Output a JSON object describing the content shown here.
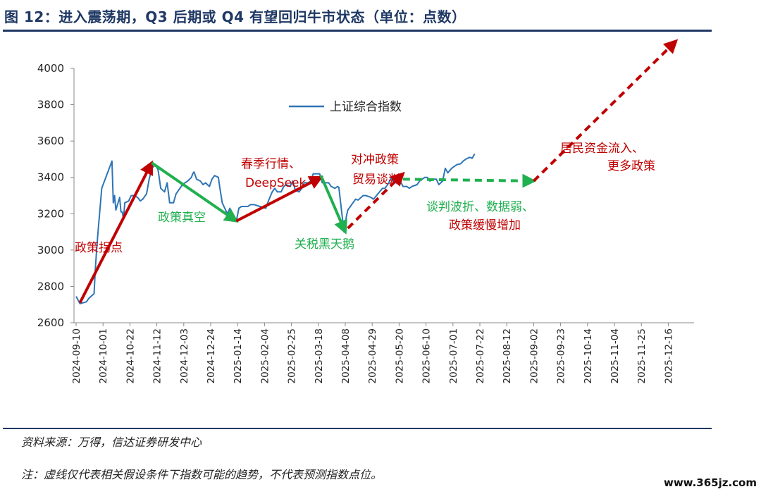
{
  "header": {
    "title": "图 12：进入震荡期，Q3 后期或 Q4 有望回归牛市状态（单位：点数）"
  },
  "footer": {
    "source": "资料来源：万得，信达证券研发中心",
    "note": "注：虚线仅代表相关假设条件下指数可能的趋势，不代表预测指数点位。",
    "watermark": "www.365jz.com"
  },
  "chart_data": {
    "type": "line",
    "ylim": [
      2600,
      4000
    ],
    "y_ticks": [
      "4000",
      "3800",
      "3600",
      "3400",
      "3200",
      "3000",
      "2800",
      "2600"
    ],
    "x_tick_labels": [
      "2024-09-10",
      "2024-10-01",
      "2024-10-22",
      "2024-11-12",
      "2024-12-03",
      "2024-12-24",
      "2025-01-14",
      "2025-02-04",
      "2025-02-25",
      "2025-03-18",
      "2025-04-08",
      "2025-04-29",
      "2025-05-20",
      "2025-06-10",
      "2025-07-01",
      "2025-07-22",
      "2025-08-12",
      "2025-09-02",
      "2025-09-23",
      "2025-10-14",
      "2025-11-04",
      "2025-11-25",
      "2025-12-16"
    ],
    "legend": [
      "上证综合指数"
    ],
    "series_color": "#2e75b6",
    "series": [
      {
        "name": "上证综合指数",
        "x": [
          "2024-09-10",
          "2024-09-13",
          "2024-09-18",
          "2024-09-20",
          "2024-09-24",
          "2024-09-25",
          "2024-09-26",
          "2024-09-27",
          "2024-09-30",
          "2024-10-08",
          "2024-10-09",
          "2024-10-10",
          "2024-10-11",
          "2024-10-14",
          "2024-10-15",
          "2024-10-16",
          "2024-10-17",
          "2024-10-18",
          "2024-10-21",
          "2024-10-23",
          "2024-10-25",
          "2024-10-28",
          "2024-10-30",
          "2024-11-01",
          "2024-11-04",
          "2024-11-06",
          "2024-11-08",
          "2024-11-11",
          "2024-11-13",
          "2024-11-15",
          "2024-11-18",
          "2024-11-20",
          "2024-11-22",
          "2024-11-25",
          "2024-11-27",
          "2024-11-29",
          "2024-12-02",
          "2024-12-04",
          "2024-12-06",
          "2024-12-09",
          "2024-12-10",
          "2024-12-11",
          "2024-12-13",
          "2024-12-16",
          "2024-12-18",
          "2024-12-20",
          "2024-12-23",
          "2024-12-25",
          "2024-12-27",
          "2024-12-30",
          "2024-12-31",
          "2025-01-02",
          "2025-01-06",
          "2025-01-08",
          "2025-01-10",
          "2025-01-13",
          "2025-01-15",
          "2025-01-17",
          "2025-01-20",
          "2025-01-22",
          "2025-01-24",
          "2025-01-27",
          "2025-02-05",
          "2025-02-07",
          "2025-02-10",
          "2025-02-12",
          "2025-02-14",
          "2025-02-17",
          "2025-02-19",
          "2025-02-21",
          "2025-02-24",
          "2025-02-26",
          "2025-02-28",
          "2025-03-03",
          "2025-03-05",
          "2025-03-07",
          "2025-03-10",
          "2025-03-12",
          "2025-03-14",
          "2025-03-17",
          "2025-03-19",
          "2025-03-21",
          "2025-03-24",
          "2025-03-26",
          "2025-03-28",
          "2025-03-31",
          "2025-04-02",
          "2025-04-03",
          "2025-04-07",
          "2025-04-08",
          "2025-04-09",
          "2025-04-10",
          "2025-04-14",
          "2025-04-16",
          "2025-04-18",
          "2025-04-22",
          "2025-04-24",
          "2025-04-28",
          "2025-04-30",
          "2025-05-07",
          "2025-05-09",
          "2025-05-12",
          "2025-05-14",
          "2025-05-16",
          "2025-05-19",
          "2025-05-21",
          "2025-05-23",
          "2025-05-26",
          "2025-05-28",
          "2025-05-30",
          "2025-06-03",
          "2025-06-05",
          "2025-06-09",
          "2025-06-11",
          "2025-06-13",
          "2025-06-16",
          "2025-06-18",
          "2025-06-20",
          "2025-06-23",
          "2025-06-25",
          "2025-06-27",
          "2025-06-30",
          "2025-07-02",
          "2025-07-04",
          "2025-07-07",
          "2025-07-09",
          "2025-07-11",
          "2025-07-14",
          "2025-07-16",
          "2025-07-18"
        ],
        "y": [
          2745,
          2705,
          2715,
          2735,
          2760,
          2895,
          3000,
          3090,
          3340,
          3490,
          3260,
          3300,
          3220,
          3290,
          3210,
          3210,
          3170,
          3260,
          3270,
          3300,
          3300,
          3290,
          3270,
          3280,
          3310,
          3390,
          3450,
          3470,
          3440,
          3340,
          3320,
          3370,
          3260,
          3260,
          3310,
          3330,
          3360,
          3370,
          3380,
          3400,
          3420,
          3430,
          3390,
          3380,
          3360,
          3370,
          3350,
          3390,
          3410,
          3400,
          3350,
          3260,
          3200,
          3230,
          3170,
          3160,
          3230,
          3240,
          3240,
          3240,
          3250,
          3250,
          3230,
          3270,
          3320,
          3340,
          3320,
          3320,
          3350,
          3360,
          3350,
          3380,
          3330,
          3320,
          3340,
          3370,
          3370,
          3380,
          3420,
          3420,
          3420,
          3370,
          3370,
          3370,
          3350,
          3340,
          3350,
          3345,
          3100,
          3140,
          3190,
          3220,
          3260,
          3280,
          3275,
          3300,
          3300,
          3290,
          3280,
          3340,
          3340,
          3370,
          3400,
          3370,
          3370,
          3380,
          3350,
          3350,
          3340,
          3350,
          3360,
          3380,
          3400,
          3400,
          3380,
          3390,
          3390,
          3360,
          3380,
          3450,
          3425,
          3450,
          3460,
          3470,
          3475,
          3490,
          3500,
          3510,
          3505,
          3530
        ]
      }
    ],
    "annotations": [
      {
        "text": "政策拐点",
        "color": "#c00000",
        "arrow": "solid",
        "from": [
          "2024-09-13",
          2710
        ],
        "to": [
          "2024-11-08",
          3480
        ]
      },
      {
        "text": "政策真空",
        "color": "#20b050",
        "arrow": "solid",
        "from": [
          "2024-11-08",
          3480
        ],
        "to": [
          "2025-01-13",
          3160
        ]
      },
      {
        "text": "春季行情、",
        "color": "#c00000",
        "arrow": "solid",
        "from": [
          "2025-01-13",
          3160
        ],
        "to": [
          "2025-03-20",
          3400
        ]
      },
      {
        "text": "DeepSeek",
        "color": "#c00000",
        "arrow": "none"
      },
      {
        "text": "关税黑天鹅",
        "color": "#20b050",
        "arrow": "solid",
        "from": [
          "2025-03-20",
          3410
        ],
        "to": [
          "2025-04-08",
          3100
        ]
      },
      {
        "text": "对冲政策",
        "color": "#c00000",
        "arrow": "dashed",
        "from": [
          "2025-04-10",
          3120
        ],
        "to": [
          "2025-05-23",
          3420
        ]
      },
      {
        "text": "贸易谈判",
        "color": "#c00000",
        "arrow": "none"
      },
      {
        "text": "谈判波折、数据弱、",
        "color": "#20b050",
        "arrow": "dashed",
        "from": [
          "2025-05-23",
          3390
        ],
        "to": [
          "2025-09-02",
          3380
        ]
      },
      {
        "text": "政策缓慢增加",
        "color": "#c00000",
        "arrow": "none"
      },
      {
        "text": "居民资金流入、",
        "color": "#c00000",
        "arrow": "dashed",
        "from": [
          "2025-09-02",
          3380
        ],
        "to": [
          "2025-12-22",
          4150
        ]
      },
      {
        "text": "更多政策",
        "color": "#c00000",
        "arrow": "none"
      }
    ]
  }
}
